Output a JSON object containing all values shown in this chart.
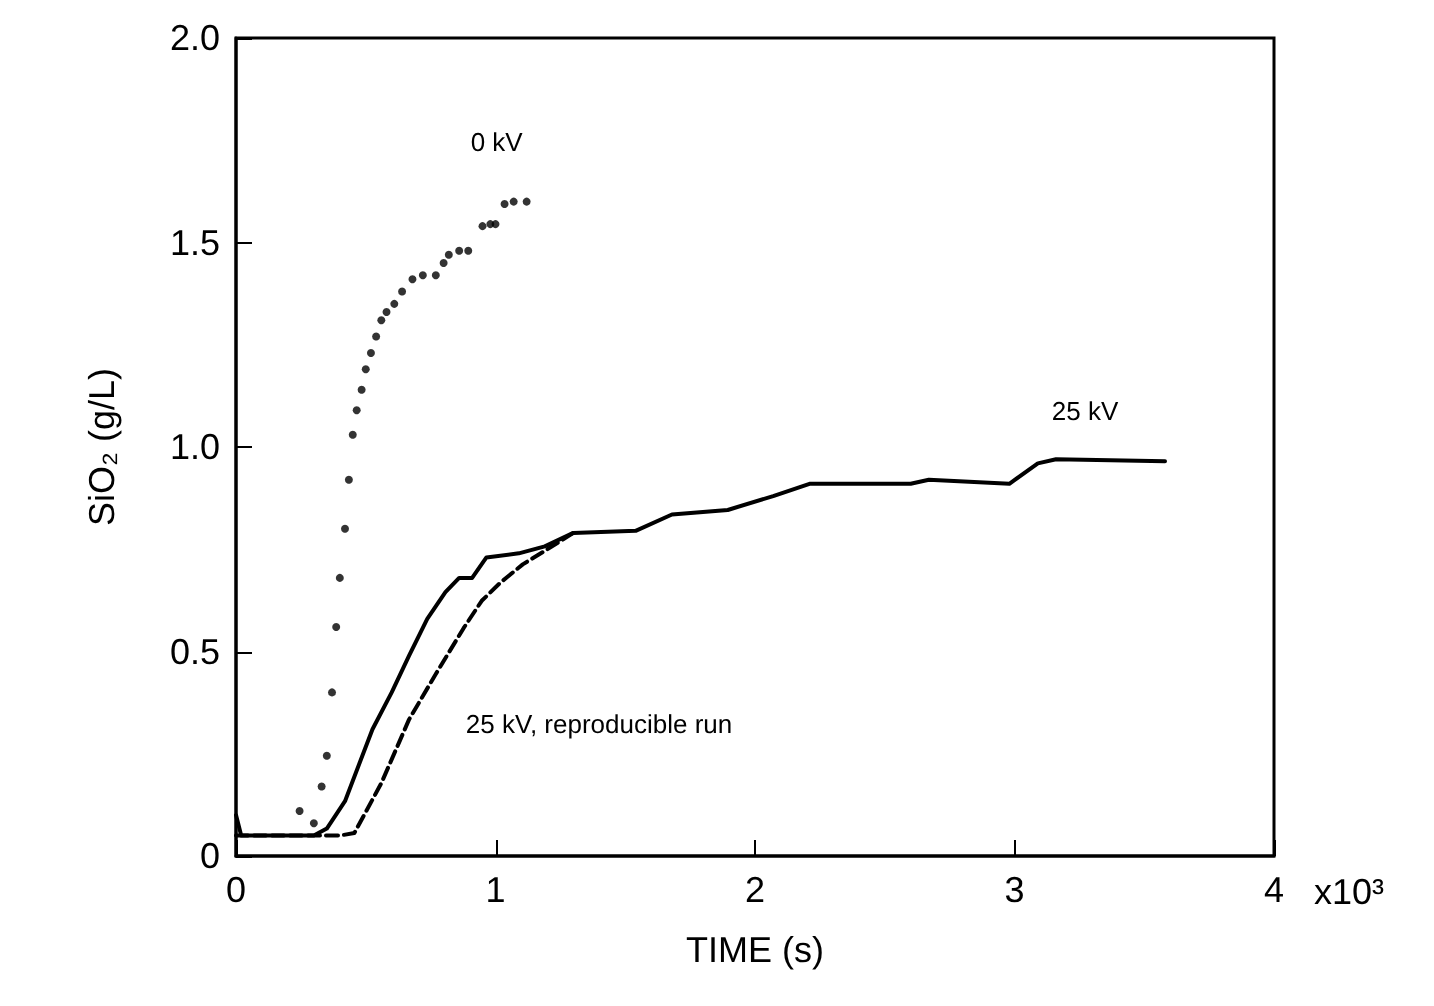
{
  "chart_data": {
    "type": "line",
    "xlabel": "TIME (s)",
    "ylabel": "SiO₂ (g/L)",
    "xlim": [
      0,
      4
    ],
    "xticks": [
      0,
      1,
      2,
      3,
      4
    ],
    "ylim": [
      0,
      2
    ],
    "yticks": [
      0,
      {
        "value": 0.5,
        "label": "0.5"
      },
      {
        "value": 1,
        "label": "1.0"
      },
      {
        "value": 1.5,
        "label": "1.5"
      },
      {
        "value": 2,
        "label": "2.0"
      }
    ],
    "grid": false,
    "series": [
      {
        "type": "scatter",
        "name": "0 kV",
        "marker": "circle",
        "color": "#000000",
        "x": [
          0.245,
          0.3,
          0.33,
          0.35,
          0.37,
          0.386,
          0.4,
          0.42,
          0.435,
          0.45,
          0.465,
          0.484,
          0.5,
          0.52,
          0.54,
          0.56,
          0.58,
          0.61,
          0.64,
          0.68,
          0.72,
          0.77,
          0.8,
          0.82,
          0.86,
          0.895,
          0.95,
          0.98,
          1.0,
          1.035,
          1.07,
          1.12
        ],
        "values": [
          0.11,
          0.08,
          0.17,
          0.245,
          0.4,
          0.56,
          0.68,
          0.8,
          0.92,
          1.03,
          1.09,
          1.14,
          1.19,
          1.23,
          1.27,
          1.31,
          1.33,
          1.35,
          1.38,
          1.41,
          1.42,
          1.42,
          1.45,
          1.47,
          1.48,
          1.48,
          1.54,
          1.545,
          1.545,
          1.594,
          1.6,
          1.6
        ]
      },
      {
        "name": "25 kV",
        "line_style": "solid",
        "color": "#000000",
        "x": [
          0,
          0.02,
          0.1,
          0.2,
          0.3,
          0.35,
          0.42,
          0.526,
          0.6,
          0.667,
          0.737,
          0.807,
          0.86,
          0.91,
          0.965,
          1.09,
          1.19,
          1.3,
          1.54,
          1.68,
          1.895,
          2.07,
          2.21,
          2.6,
          2.67,
          2.98,
          3.09,
          3.16,
          3.58
        ],
        "values": [
          0.1,
          0.05,
          0.05,
          0.05,
          0.05,
          0.067,
          0.134,
          0.31,
          0.4,
          0.49,
          0.58,
          0.645,
          0.68,
          0.68,
          0.73,
          0.74,
          0.757,
          0.79,
          0.795,
          0.835,
          0.846,
          0.88,
          0.91,
          0.91,
          0.92,
          0.91,
          0.96,
          0.97,
          0.965
        ]
      },
      {
        "name": "25 kV, reproducible run",
        "line_style": "dashed",
        "color": "#000000",
        "x": [
          0,
          0.2,
          0.4,
          0.456,
          0.56,
          0.667,
          0.77,
          0.877,
          0.947,
          1.018,
          1.105,
          1.19,
          1.3
        ],
        "values": [
          0.05,
          0.05,
          0.05,
          0.056,
          0.178,
          0.334,
          0.445,
          0.557,
          0.624,
          0.668,
          0.713,
          0.746,
          0.79
        ]
      }
    ],
    "annotations": [
      "x10³"
    ]
  }
}
